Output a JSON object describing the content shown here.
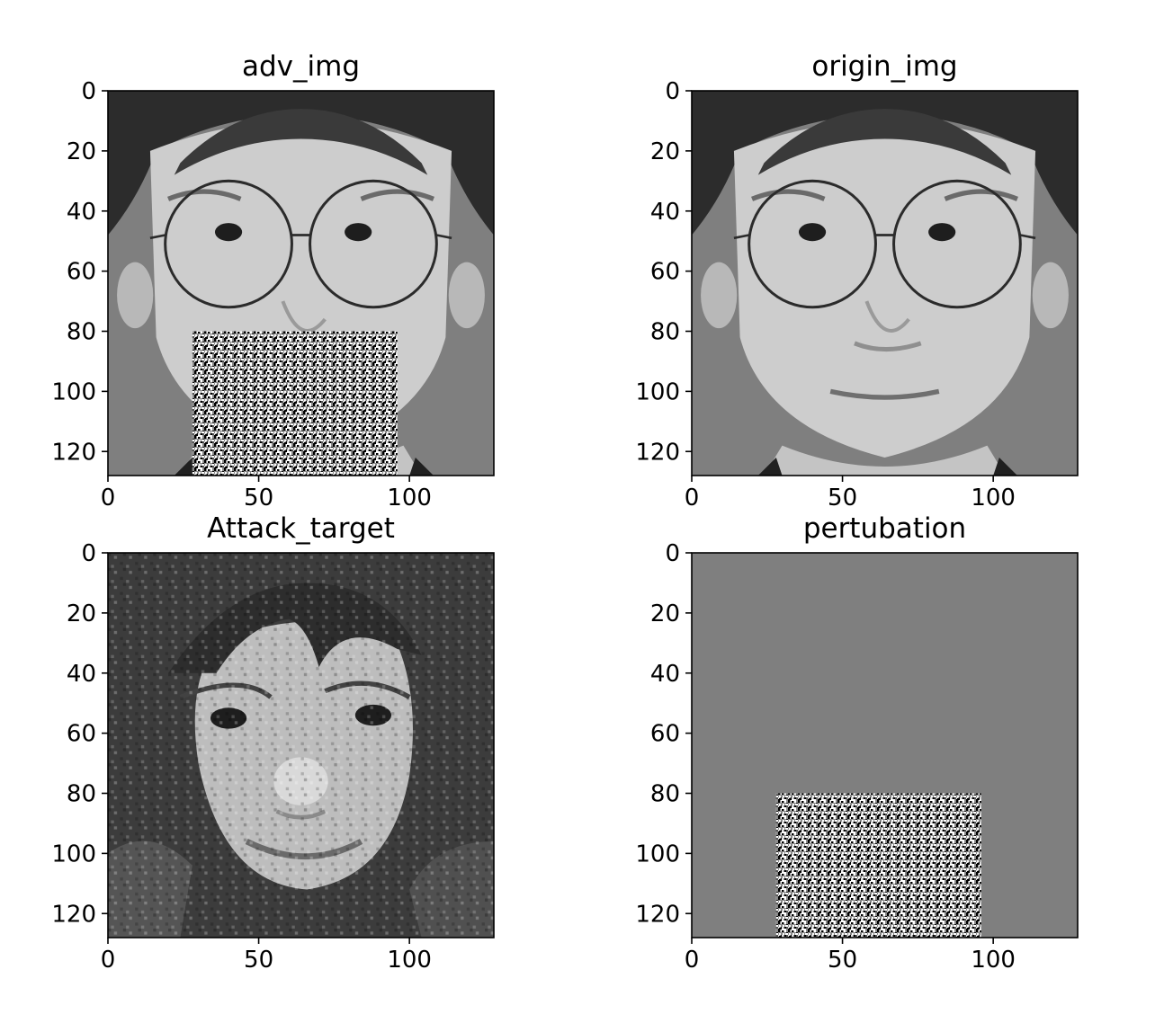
{
  "chart_data": [
    {
      "type": "image",
      "title": "adv_img",
      "content": "grayscale face image with adversarial noise patch over lower face",
      "xlim": [
        0,
        128
      ],
      "ylim": [
        128,
        0
      ],
      "xticks": [
        0,
        50,
        100
      ],
      "yticks": [
        0,
        20,
        40,
        60,
        80,
        100,
        120
      ],
      "patch": {
        "x": [
          28,
          96
        ],
        "y": [
          80,
          128
        ]
      }
    },
    {
      "type": "image",
      "title": "origin_img",
      "content": "grayscale face image of a man wearing round glasses on gray background",
      "xlim": [
        0,
        128
      ],
      "ylim": [
        128,
        0
      ],
      "xticks": [
        0,
        50,
        100
      ],
      "yticks": [
        0,
        20,
        40,
        60,
        80,
        100,
        120
      ]
    },
    {
      "type": "image",
      "title": "Attack_target",
      "content": "noisy grayscale face image of a woman with long hair and bangs",
      "xlim": [
        0,
        128
      ],
      "ylim": [
        128,
        0
      ],
      "xticks": [
        0,
        50,
        100
      ],
      "yticks": [
        0,
        20,
        40,
        60,
        80,
        100,
        120
      ]
    },
    {
      "type": "image",
      "title": "pertubation",
      "content": "gray field with high-contrast noise patch",
      "xlim": [
        0,
        128
      ],
      "ylim": [
        128,
        0
      ],
      "xticks": [
        0,
        50,
        100
      ],
      "yticks": [
        0,
        20,
        40,
        60,
        80,
        100,
        120
      ],
      "patch": {
        "x": [
          28,
          96
        ],
        "y": [
          80,
          128
        ]
      }
    }
  ],
  "colors": {
    "background_gray": "#7f7f7f",
    "hair": "#2e2e2e",
    "skin": "#cfcfcf",
    "axis": "#000000"
  }
}
